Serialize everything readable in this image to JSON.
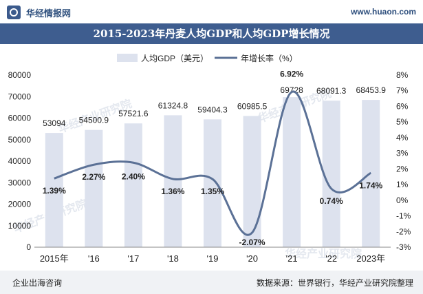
{
  "header": {
    "brand": "华经情报网",
    "url": "www.huaon.com"
  },
  "title": "2015-2023年丹麦人均GDP和人均GDP增长情况",
  "footer": {
    "left": "企业出海咨询",
    "right": "数据来源：世界银行，华经产业研究院整理"
  },
  "watermark": {
    "text": "华经产业研究院",
    "url": "www.huaon.com"
  },
  "colors": {
    "title_bar": "#3e5d8f",
    "bar": "#dde2ee",
    "line": "#5b7196",
    "text": "#222222"
  },
  "chart_data": {
    "type": "bar",
    "categories": [
      "2015年",
      "'16",
      "'17",
      "'18",
      "'19",
      "'20",
      "'21",
      "'22",
      "2023年"
    ],
    "series": [
      {
        "name": "人均GDP（美元）",
        "type": "bar",
        "axis": "left",
        "values": [
          53094,
          54500.9,
          57521.6,
          61324.8,
          59404.3,
          60985.5,
          69728,
          68091.3,
          68453.9
        ],
        "labels": [
          "53094",
          "54500.9",
          "57521.6",
          "61324.8",
          "59404.3",
          "60985.5",
          "69728",
          "68091.3",
          "68453.9"
        ]
      },
      {
        "name": "年增长率（%）",
        "type": "line",
        "axis": "right",
        "values": [
          1.39,
          2.27,
          2.4,
          1.36,
          1.35,
          -2.07,
          6.92,
          0.74,
          1.74
        ],
        "labels": [
          "1.39%",
          "2.27%",
          "2.40%",
          "1.36%",
          "1.35%",
          "-2.07%",
          "6.92%",
          "0.74%",
          "1.74%"
        ]
      }
    ],
    "y_left": {
      "min": 0,
      "max": 80000,
      "ticks": [
        "0",
        "10000",
        "20000",
        "30000",
        "40000",
        "50000",
        "60000",
        "70000",
        "80000"
      ]
    },
    "y_right": {
      "min": -3,
      "max": 8,
      "ticks": [
        "-3%",
        "-2%",
        "-1%",
        "0%",
        "1%",
        "2%",
        "3%",
        "4%",
        "5%",
        "6%",
        "7%",
        "8%"
      ]
    },
    "legend_position": "top-center",
    "grid": false
  }
}
